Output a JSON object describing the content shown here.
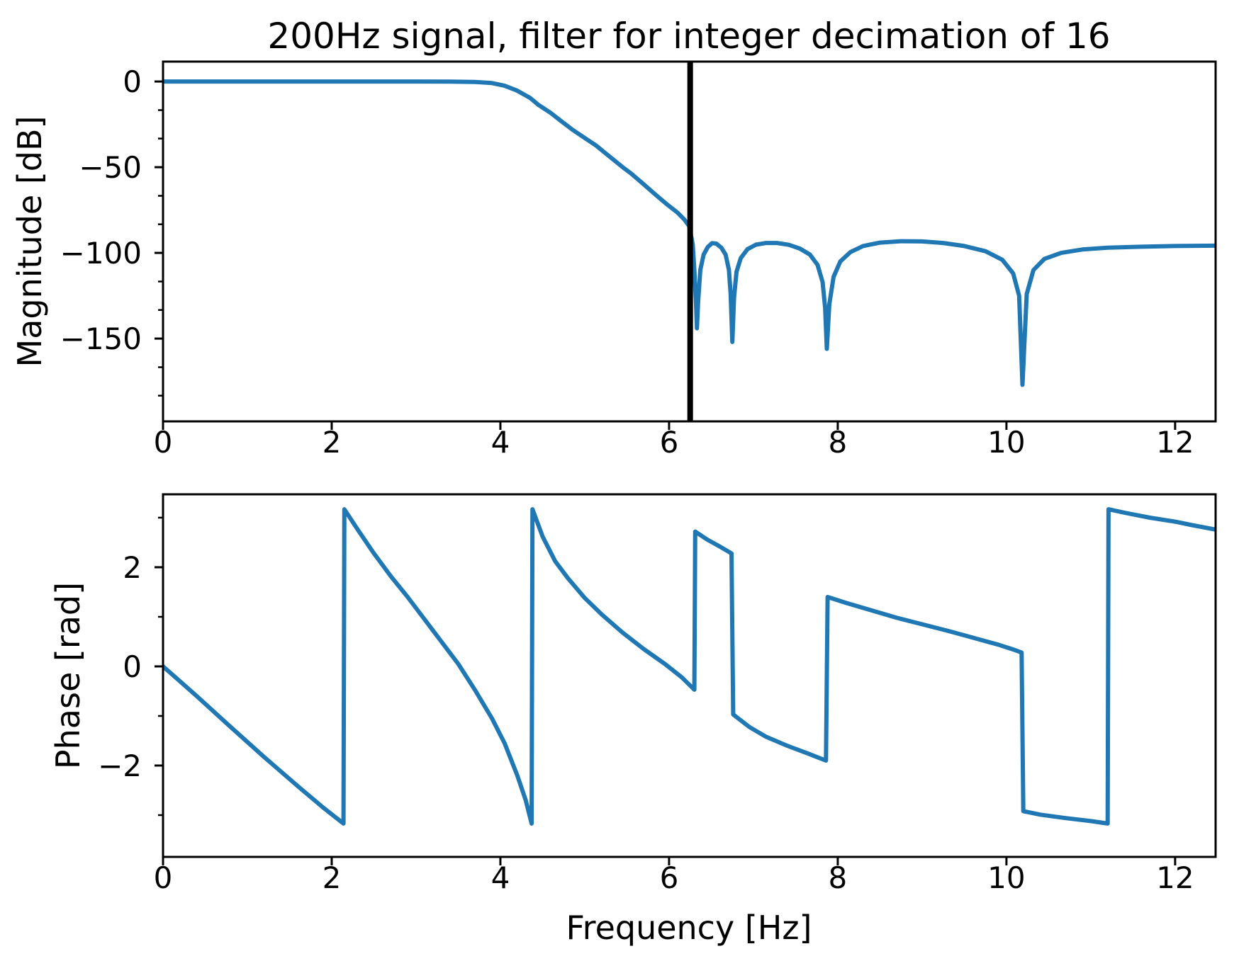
{
  "figure": {
    "title": "200Hz signal, filter for integer decimation of 16",
    "background": "#ffffff",
    "accent_color": "#1f77b4",
    "annotation_color": "#000000"
  },
  "chart_data": [
    {
      "id": "magnitude",
      "type": "line",
      "title": "200Hz signal, filter for integer decimation of 16",
      "ylabel": "Magnitude [dB]",
      "xlabel": "",
      "xlim": [
        0,
        12.48
      ],
      "ylim": [
        -198.3,
        11.6
      ],
      "grid": false,
      "legend": null,
      "xticks": {
        "values": [
          0,
          2,
          4,
          6,
          8,
          10,
          12
        ],
        "labels": [
          "0",
          "2",
          "4",
          "6",
          "8",
          "10",
          "12"
        ]
      },
      "yticks": {
        "values": [
          0,
          -50,
          -100,
          -150
        ],
        "labels": [
          "0",
          "−50",
          "−100",
          "−150"
        ]
      },
      "yticks_minor": [
        -16.7,
        -33.3,
        -66.7,
        -83.3,
        -116.7,
        -133.3,
        -166.7,
        -183.3
      ],
      "annotations": [
        {
          "type": "vline",
          "name": "decimation-nyquist-line",
          "x": 6.25,
          "color": "#000000",
          "linewidth": 8
        }
      ],
      "series": [
        {
          "name": "magnitude-response-curve",
          "color": "#1f77b4",
          "linewidth": 6,
          "x": [
            0,
            0.5,
            1.0,
            1.5,
            2.0,
            2.5,
            3.0,
            3.4,
            3.7,
            3.9,
            4.05,
            4.2,
            4.35,
            4.45,
            4.6,
            4.71,
            4.85,
            5.0,
            5.13,
            5.3,
            5.45,
            5.55,
            5.7,
            5.85,
            5.97,
            6.1,
            6.18,
            6.24,
            6.28,
            6.3,
            6.32,
            6.33,
            6.345,
            6.37,
            6.41,
            6.46,
            6.51,
            6.56,
            6.62,
            6.67,
            6.71,
            6.73,
            6.75,
            6.77,
            6.8,
            6.85,
            6.93,
            7.03,
            7.15,
            7.28,
            7.42,
            7.55,
            7.67,
            7.76,
            7.82,
            7.85,
            7.87,
            7.9,
            7.95,
            8.03,
            8.15,
            8.3,
            8.5,
            8.75,
            9.0,
            9.25,
            9.5,
            9.75,
            9.95,
            10.08,
            10.15,
            10.19,
            10.24,
            10.32,
            10.45,
            10.65,
            10.9,
            11.2,
            11.6,
            12.0,
            12.48
          ],
          "y": [
            0,
            0,
            0,
            0,
            0,
            0,
            0,
            -0.1,
            -0.3,
            -0.9,
            -2.5,
            -5.4,
            -9.5,
            -13.6,
            -18.5,
            -22.7,
            -28,
            -33,
            -37.2,
            -44,
            -50,
            -53.7,
            -60,
            -66.5,
            -71.5,
            -76.5,
            -80.5,
            -84.5,
            -95,
            -110,
            -130,
            -144,
            -128,
            -110,
            -101,
            -96.5,
            -94.3,
            -94.6,
            -97,
            -101,
            -110,
            -124,
            -152,
            -126,
            -111,
            -103,
            -97.8,
            -95.2,
            -94.2,
            -94.2,
            -95.3,
            -97.5,
            -101,
            -107,
            -117,
            -132,
            -156,
            -130,
            -114,
            -105,
            -99.5,
            -96,
            -94,
            -93.2,
            -93.3,
            -94.2,
            -96,
            -99,
            -104,
            -112,
            -125,
            -177,
            -124,
            -110,
            -103.5,
            -100,
            -98,
            -97,
            -96.4,
            -96,
            -95.8
          ]
        }
      ]
    },
    {
      "id": "phase",
      "type": "line",
      "title": "",
      "ylabel": "Phase [rad]",
      "xlabel": "Frequency [Hz]",
      "xlim": [
        0,
        12.48
      ],
      "ylim": [
        -3.843,
        3.471
      ],
      "grid": false,
      "legend": null,
      "xticks": {
        "values": [
          0,
          2,
          4,
          6,
          8,
          10,
          12
        ],
        "labels": [
          "0",
          "2",
          "4",
          "6",
          "8",
          "10",
          "12"
        ]
      },
      "yticks": {
        "values": [
          2,
          0,
          -2
        ],
        "labels": [
          "2",
          "0",
          "−2"
        ]
      },
      "yticks_minor": [
        3,
        1,
        -1,
        -3
      ],
      "annotations": [],
      "series": [
        {
          "name": "phase-response-curve",
          "color": "#1f77b4",
          "linewidth": 6,
          "x": [
            0,
            0.4,
            0.8,
            1.2,
            1.6,
            1.9,
            2.05,
            2.14,
            2.15,
            2.3,
            2.5,
            2.7,
            2.9,
            3.1,
            3.3,
            3.5,
            3.7,
            3.9,
            4.05,
            4.2,
            4.3,
            4.37,
            4.38,
            4.5,
            4.65,
            4.8,
            5.0,
            5.2,
            5.45,
            5.7,
            5.95,
            6.15,
            6.3,
            6.31,
            6.45,
            6.6,
            6.74,
            6.76,
            6.95,
            7.15,
            7.4,
            7.65,
            7.86,
            7.88,
            8.1,
            8.4,
            8.7,
            9.0,
            9.3,
            9.6,
            9.9,
            10.1,
            10.18,
            10.2,
            10.4,
            10.7,
            11.0,
            11.2,
            11.21,
            11.4,
            11.7,
            12.0,
            12.2,
            12.48
          ],
          "y": [
            0,
            -0.6,
            -1.22,
            -1.83,
            -2.42,
            -2.85,
            -3.05,
            -3.17,
            3.17,
            2.78,
            2.28,
            1.82,
            1.4,
            0.95,
            0.5,
            0.05,
            -0.48,
            -1.05,
            -1.55,
            -2.2,
            -2.7,
            -3.17,
            3.17,
            2.62,
            2.12,
            1.78,
            1.38,
            1.05,
            0.68,
            0.35,
            0.05,
            -0.22,
            -0.47,
            2.72,
            2.56,
            2.42,
            2.28,
            -0.97,
            -1.22,
            -1.42,
            -1.6,
            -1.76,
            -1.9,
            1.4,
            1.28,
            1.13,
            0.98,
            0.85,
            0.72,
            0.58,
            0.44,
            0.33,
            0.28,
            -2.92,
            -2.99,
            -3.06,
            -3.12,
            -3.17,
            3.17,
            3.1,
            3.0,
            2.92,
            2.85,
            2.76
          ]
        }
      ]
    }
  ]
}
